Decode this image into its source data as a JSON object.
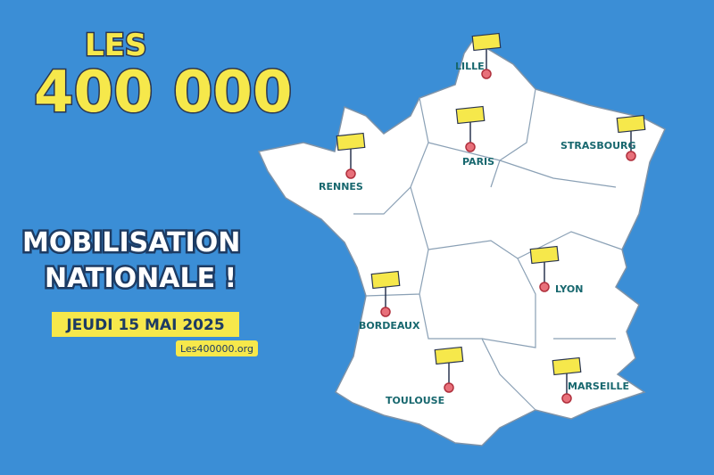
{
  "header": {
    "line1": "LES",
    "line2": "400 000"
  },
  "headline": {
    "line1": "MOBILISATION",
    "line2": "NATIONALE !"
  },
  "date": "JEUDI 15 MAI 2025",
  "website": "Les400000.org",
  "cities": [
    {
      "label": "LILLE"
    },
    {
      "label": "PARIS"
    },
    {
      "label": "STRASBOURG"
    },
    {
      "label": "RENNES"
    },
    {
      "label": "BORDEAUX"
    },
    {
      "label": "LYON"
    },
    {
      "label": "TOULOUSE"
    },
    {
      "label": "MARSEILLE"
    }
  ]
}
